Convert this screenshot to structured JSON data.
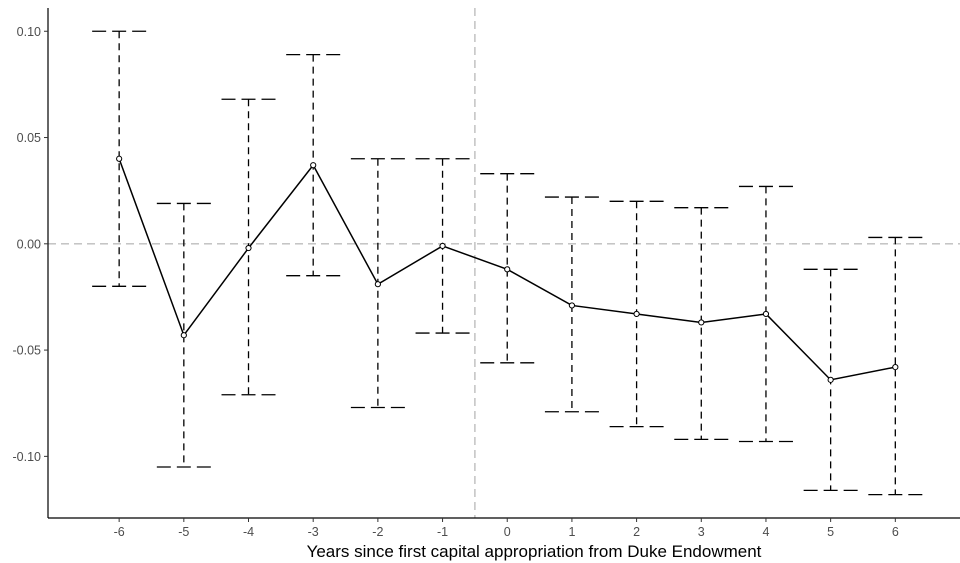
{
  "chart_data": {
    "type": "line",
    "title": "",
    "xlabel": "Years since first capital appropriation from Duke Endowment",
    "ylabel": "",
    "x": [
      -6,
      -5,
      -4,
      -3,
      -2,
      -1,
      0,
      1,
      2,
      3,
      4,
      5,
      6
    ],
    "x_tick_labels": [
      "-6",
      "-5",
      "-4",
      "-3",
      "-2",
      "-1",
      "0",
      "1",
      "2",
      "3",
      "4",
      "5",
      "6"
    ],
    "y_ticks": [
      0.1,
      0.05,
      0.0,
      -0.05,
      -0.1
    ],
    "y_tick_labels": [
      "0.10",
      "0.05",
      "0.00",
      "-0.05",
      "-0.10"
    ],
    "xlim": [
      -7.1,
      7.0
    ],
    "ylim": [
      -0.129,
      0.11
    ],
    "series": [
      {
        "values": [
          0.04,
          -0.043,
          -0.002,
          0.037,
          -0.019,
          -0.001,
          -0.012,
          -0.029,
          -0.033,
          -0.037,
          -0.033,
          -0.064,
          -0.058
        ],
        "ci_upper": [
          0.1,
          0.019,
          0.068,
          0.089,
          0.04,
          0.04,
          0.033,
          0.022,
          0.02,
          0.017,
          0.027,
          -0.012,
          0.003
        ],
        "ci_lower": [
          -0.02,
          -0.105,
          -0.071,
          -0.015,
          -0.077,
          -0.042,
          -0.056,
          -0.079,
          -0.086,
          -0.092,
          -0.093,
          -0.116,
          -0.118
        ]
      }
    ],
    "reference_lines": {
      "horizontal_y": 0.0,
      "vertical_x": -0.5
    },
    "grid": false,
    "legend": "none",
    "colors": {
      "series": "#000000",
      "error_bars": "#000000",
      "reference_lines": "#bdbdbd",
      "axis": "#000000",
      "tick_labels": "#4d4d4d"
    }
  }
}
